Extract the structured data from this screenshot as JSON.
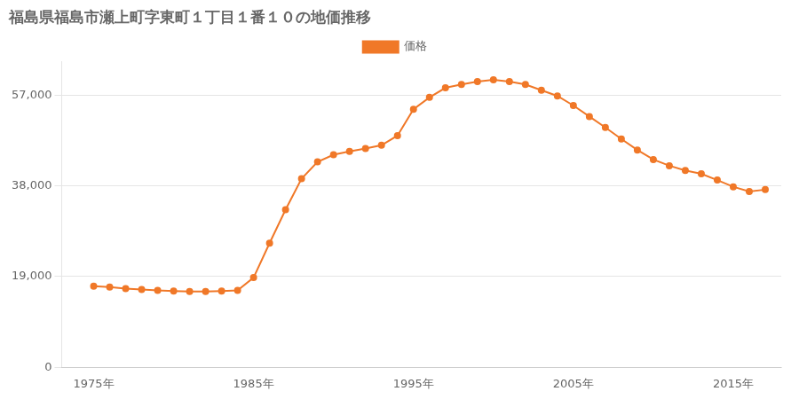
{
  "chart_data": {
    "type": "line",
    "title": "福島県福島市瀬上町字東町１丁目１番１０の地価推移",
    "series": [
      {
        "name": "価格",
        "color": "#F07828",
        "marker": "circle",
        "values": [
          17000,
          16800,
          16500,
          16300,
          16100,
          16000,
          15900,
          15900,
          16000,
          16100,
          18800,
          26000,
          33000,
          39500,
          43000,
          44500,
          45200,
          45800,
          46500,
          48500,
          54000,
          56500,
          58500,
          59200,
          59800,
          60200,
          59800,
          59200,
          58000,
          56800,
          54800,
          52500,
          50200,
          47800,
          45500,
          43500,
          42200,
          41200,
          40500,
          39200,
          37800,
          36800,
          37200
        ]
      }
    ],
    "x": [
      1975,
      1976,
      1977,
      1978,
      1979,
      1980,
      1981,
      1982,
      1983,
      1984,
      1985,
      1986,
      1987,
      1988,
      1989,
      1990,
      1991,
      1992,
      1993,
      1994,
      1995,
      1996,
      1997,
      1998,
      1999,
      2000,
      2001,
      2002,
      2003,
      2004,
      2005,
      2006,
      2007,
      2008,
      2009,
      2010,
      2011,
      2012,
      2013,
      2014,
      2015,
      2016,
      2017
    ],
    "xlim": [
      1973,
      2018
    ],
    "xticks": [
      {
        "value": 1975,
        "label": "1975年"
      },
      {
        "value": 1985,
        "label": "1985年"
      },
      {
        "value": 1995,
        "label": "1995年"
      },
      {
        "value": 2005,
        "label": "2005年"
      },
      {
        "value": 2015,
        "label": "2015年"
      }
    ],
    "ylim": [
      0,
      64000
    ],
    "yticks": [
      0,
      {
        "value": 19000,
        "label": "19,000"
      },
      {
        "value": 38000,
        "label": "38,000"
      },
      {
        "value": 57000,
        "label": "57,000"
      }
    ],
    "grid": "y",
    "legend": "top"
  }
}
